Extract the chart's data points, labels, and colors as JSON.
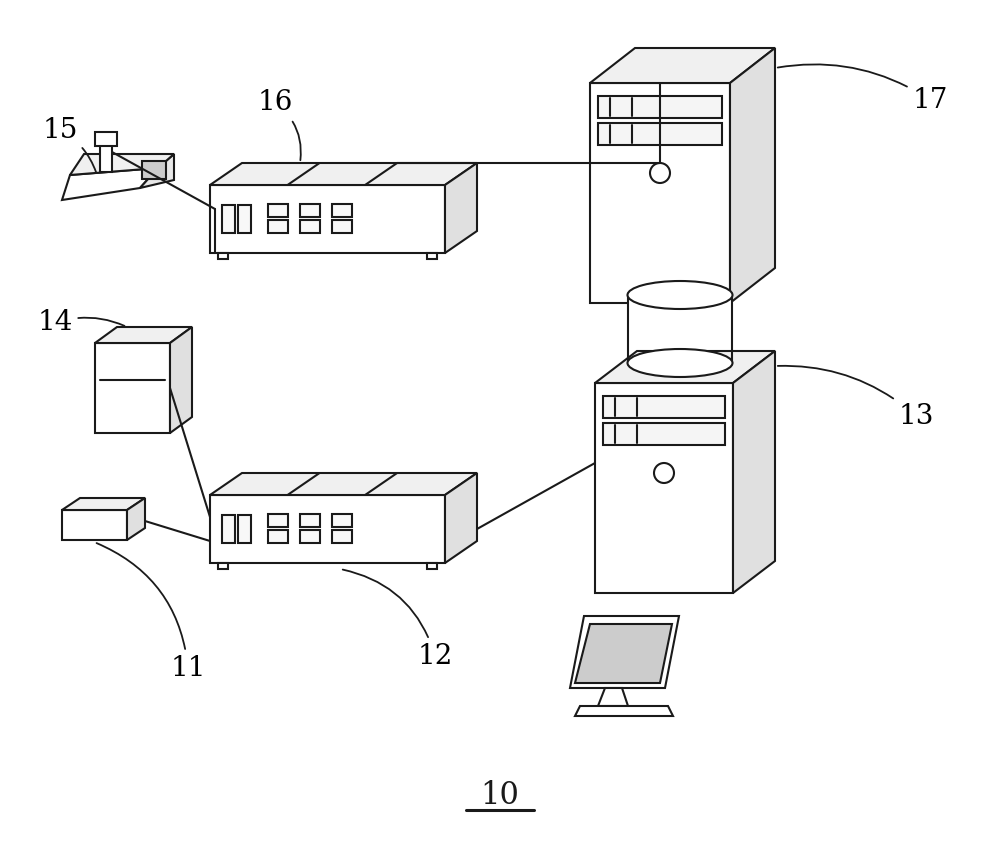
{
  "bg_color": "#ffffff",
  "line_color": "#1a1a1a",
  "lw": 1.5,
  "figsize": [
    10.0,
    8.48
  ],
  "dpi": 100
}
